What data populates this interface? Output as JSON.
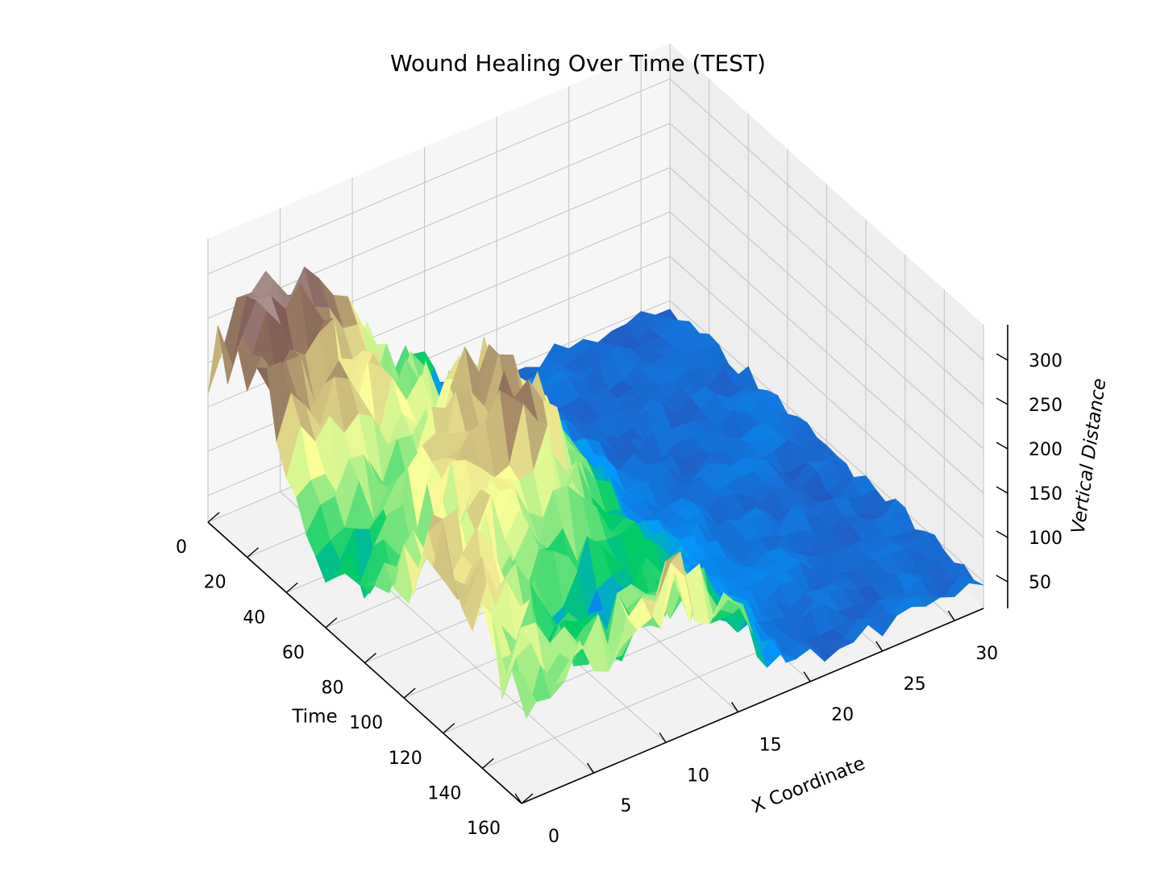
{
  "chart_data": {
    "type": "surface3d",
    "title": "Wound Healing Over Time (TEST)",
    "xlabel": "X Coordinate",
    "ylabel": "Time",
    "zlabel": "Vertical Distance",
    "colormap": "terrain",
    "grid": true,
    "xlim": [
      0,
      32
    ],
    "ylim": [
      0,
      160
    ],
    "zlim": [
      20,
      340
    ],
    "x_ticks": [
      0,
      5,
      10,
      15,
      20,
      25,
      30
    ],
    "y_ticks": [
      0,
      20,
      40,
      60,
      80,
      100,
      120,
      140,
      160
    ],
    "z_ticks": [
      50,
      100,
      150,
      200,
      250,
      300
    ],
    "x_tick_labels": [
      "0",
      "5",
      "10",
      "15",
      "20",
      "25",
      "30"
    ],
    "y_tick_labels": [
      "0",
      "20",
      "40",
      "60",
      "80",
      "100",
      "120",
      "140",
      "160"
    ],
    "z_tick_labels": [
      "50",
      "100",
      "150",
      "200",
      "250",
      "300"
    ],
    "x_grid_count": 33,
    "y_grid_count": 33,
    "surface_profile": {
      "x_split": 16,
      "z_left_mean": 175,
      "z_right_mean": 45,
      "z_peak": 320,
      "z_min": 20
    }
  }
}
